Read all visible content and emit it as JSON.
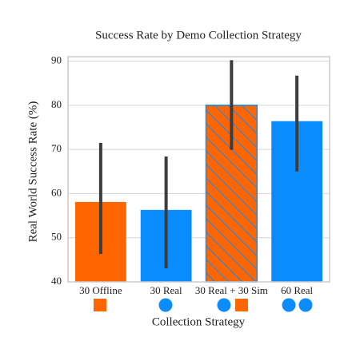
{
  "chart_data": {
    "type": "bar",
    "title": "Success Rate by Demo Collection Strategy",
    "xlabel": "Collection Strategy",
    "ylabel": "Real World Success Rate (%)",
    "categories": [
      "30 Offline",
      "30 Real",
      "30 Real + 30 Sim",
      "60 Real"
    ],
    "values": [
      58.1,
      56.3,
      80,
      76.4
    ],
    "ci_low": [
      46.3,
      43.1,
      69.9,
      65
    ],
    "ci_high": [
      71.5,
      68.4,
      90.2,
      86.7
    ],
    "colors": [
      "#ff6600",
      "#0a8cff",
      "#ff6600",
      "#0a8cff"
    ],
    "hatch": [
      null,
      null,
      "#0a8cff",
      null
    ],
    "ylim": [
      40,
      91
    ],
    "yticks": [
      40,
      50,
      60,
      70,
      80,
      90
    ],
    "grid": true
  }
}
